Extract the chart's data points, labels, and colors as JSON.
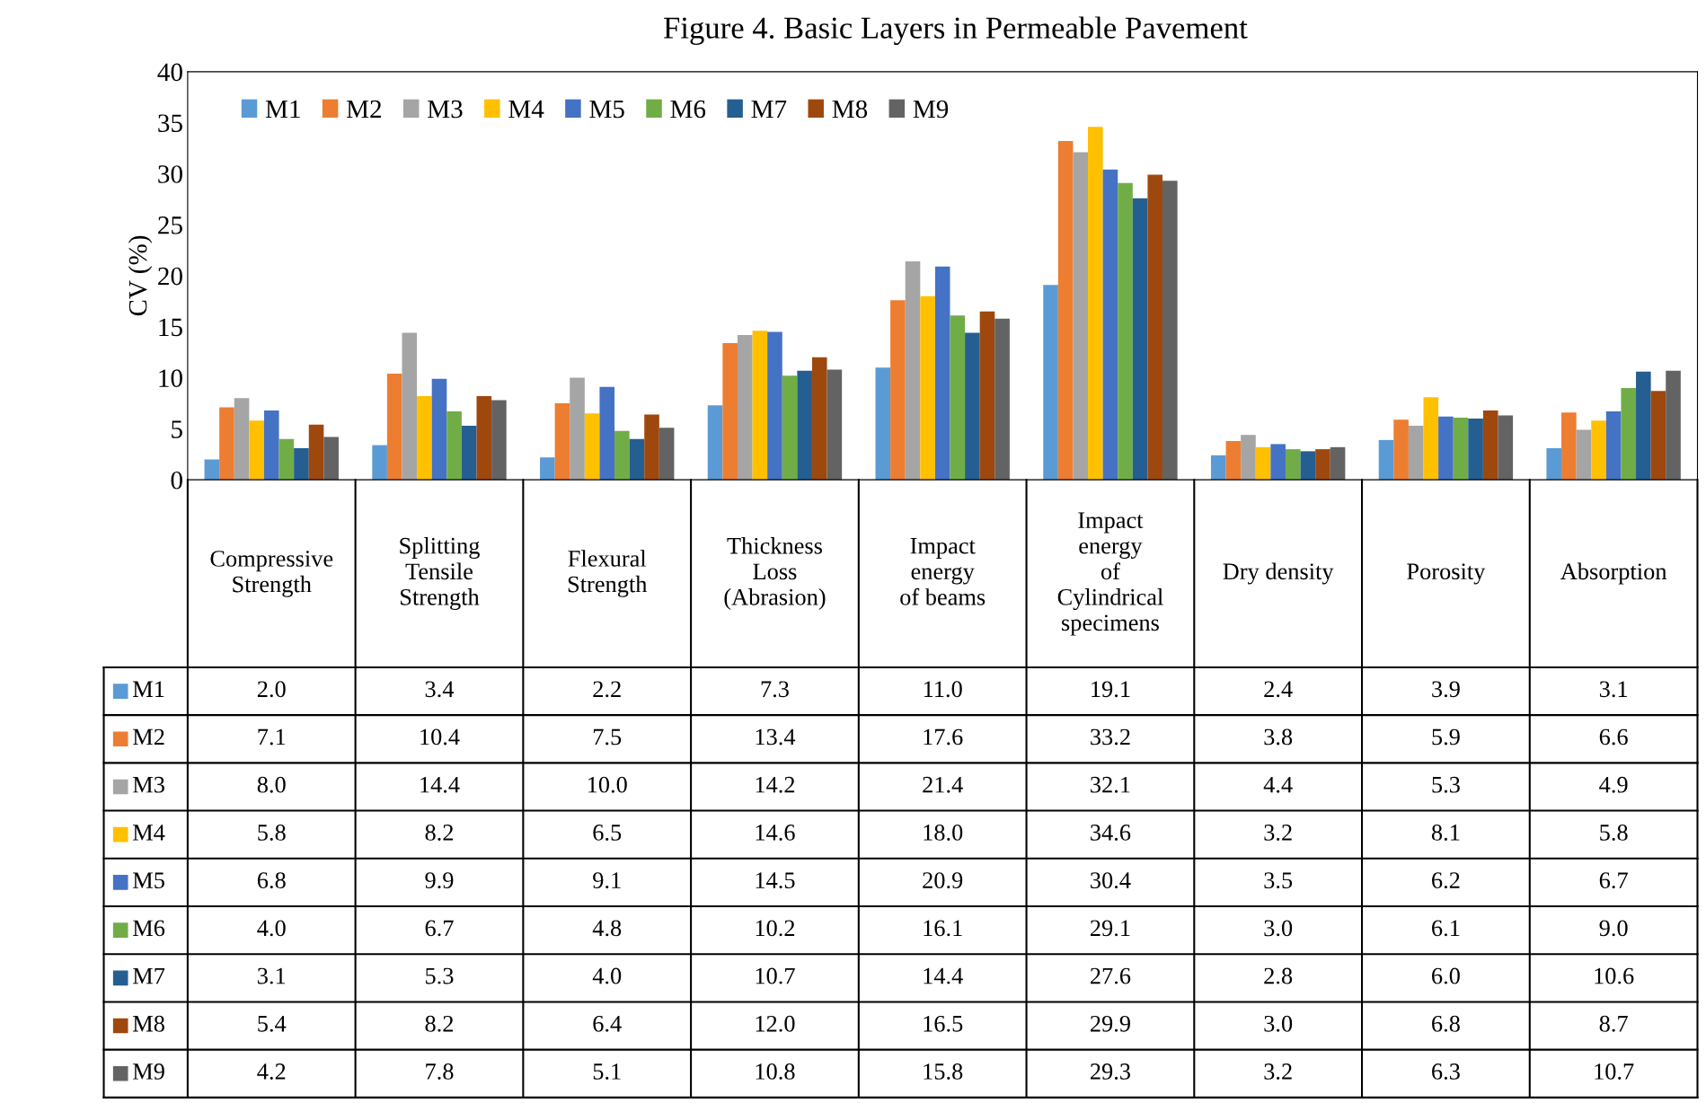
{
  "chart_data": {
    "type": "bar",
    "title": "Figure 4. Basic Layers in Permeable Pavement",
    "ylabel": "CV (%)",
    "categories": [
      "Compressive\nStrength",
      "Splitting\nTensile\nStrength",
      "Flexural\nStrength",
      "Thickness\nLoss\n(Abrasion)",
      "Impact\nenergy\nof beams",
      "Impact\nenergy\nof\nCylindrical\nspecimens",
      "Dry density",
      "Porosity",
      "Absorption"
    ],
    "series": [
      {
        "name": "M1",
        "color": "#5b9bd5",
        "values": [
          2.0,
          3.4,
          2.2,
          7.3,
          11.0,
          19.1,
          2.4,
          3.9,
          3.1
        ],
        "value_labels": [
          "2.0",
          "3.4",
          "2.2",
          "7.3",
          "11.0",
          "19.1",
          "2.4",
          "3.9",
          "3.1"
        ]
      },
      {
        "name": "M2",
        "color": "#ed7d31",
        "values": [
          7.1,
          10.4,
          7.5,
          13.4,
          17.6,
          33.2,
          3.8,
          5.9,
          6.6
        ],
        "value_labels": [
          "7.1",
          "10.4",
          "7.5",
          "13.4",
          "17.6",
          "33.2",
          "3.8",
          "5.9",
          "6.6"
        ]
      },
      {
        "name": "M3",
        "color": "#a5a5a5",
        "values": [
          8.0,
          14.4,
          10.0,
          14.2,
          21.4,
          32.1,
          4.4,
          5.3,
          4.9
        ],
        "value_labels": [
          "8.0",
          "14.4",
          "10.0",
          "14.2",
          "21.4",
          "32.1",
          "4.4",
          "5.3",
          "4.9"
        ]
      },
      {
        "name": "M4",
        "color": "#ffc000",
        "values": [
          5.8,
          8.2,
          6.5,
          14.6,
          18.0,
          34.6,
          3.2,
          8.1,
          5.8
        ],
        "value_labels": [
          "5.8",
          "8.2",
          "6.5",
          "14.6",
          "18.0",
          "34.6",
          "3.2",
          "8.1",
          "5.8"
        ]
      },
      {
        "name": "M5",
        "color": "#4472c4",
        "values": [
          6.8,
          9.9,
          9.1,
          14.5,
          20.9,
          30.4,
          3.5,
          6.2,
          6.7
        ],
        "value_labels": [
          "6.8",
          "9.9",
          "9.1",
          "14.5",
          "20.9",
          "30.4",
          "3.5",
          "6.2",
          "6.7"
        ]
      },
      {
        "name": "M6",
        "color": "#70ad47",
        "values": [
          4.0,
          6.7,
          4.8,
          10.2,
          16.1,
          29.1,
          3.0,
          6.1,
          9.0
        ],
        "value_labels": [
          "4.0",
          "6.7",
          "4.8",
          "10.2",
          "16.1",
          "29.1",
          "3.0",
          "6.1",
          "9.0"
        ]
      },
      {
        "name": "M7",
        "color": "#255e91",
        "values": [
          3.1,
          5.3,
          4.0,
          10.7,
          14.4,
          27.6,
          2.8,
          6.0,
          10.6
        ],
        "value_labels": [
          "3.1",
          "5.3",
          "4.0",
          "10.7",
          "14.4",
          "27.6",
          "2.8",
          "6.0",
          "10.6"
        ]
      },
      {
        "name": "M8",
        "color": "#9e480e",
        "values": [
          5.4,
          8.2,
          6.4,
          12.0,
          16.5,
          29.9,
          3.0,
          6.8,
          8.7
        ],
        "value_labels": [
          "5.4",
          "8.2",
          "6.4",
          "12.0",
          "16.5",
          "29.9",
          "3.0",
          "6.8",
          "8.7"
        ]
      },
      {
        "name": "M9",
        "color": "#636363",
        "values": [
          4.2,
          7.8,
          5.1,
          10.8,
          15.8,
          29.3,
          3.2,
          6.3,
          10.7
        ],
        "value_labels": [
          "4.2",
          "7.8",
          "5.1",
          "10.8",
          "15.8",
          "29.3",
          "3.2",
          "6.3",
          "10.7"
        ]
      }
    ],
    "ylim": [
      0,
      40
    ],
    "yticks": [
      0,
      5,
      10,
      15,
      20,
      25,
      30,
      35,
      40
    ],
    "grid": false,
    "legend": "top left"
  }
}
